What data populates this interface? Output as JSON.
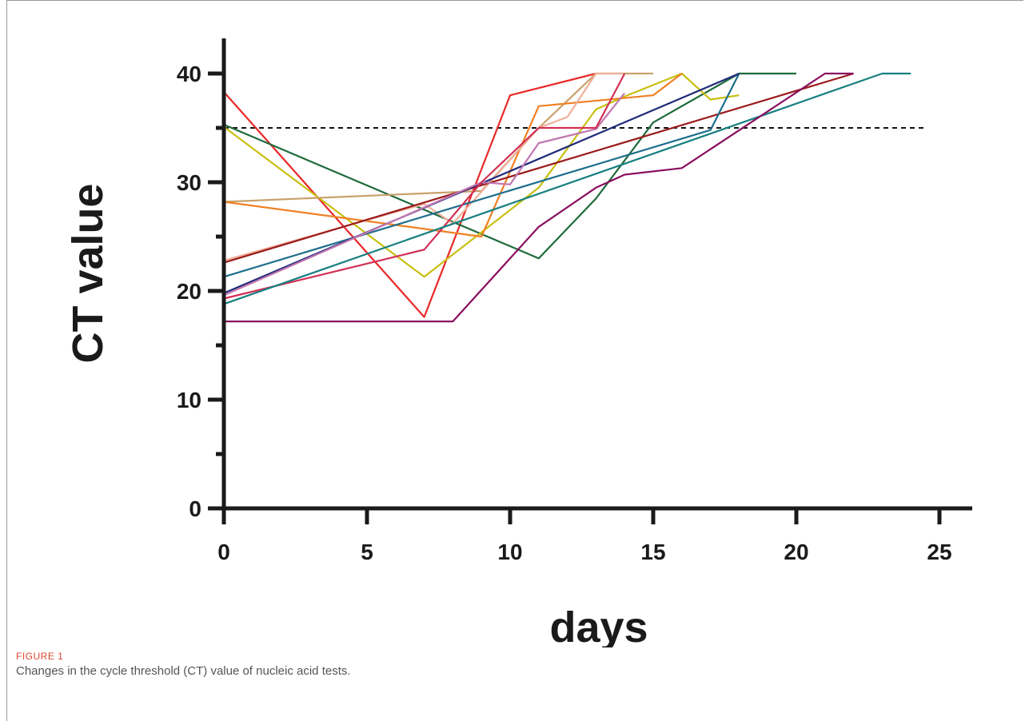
{
  "chart_data": {
    "type": "line",
    "xlabel": "days",
    "ylabel": "CT value",
    "xlim": [
      0,
      26
    ],
    "ylim": [
      0,
      40
    ],
    "x_ticks": [
      0,
      5,
      10,
      15,
      20,
      25
    ],
    "y_ticks": [
      0,
      10,
      20,
      30,
      40
    ],
    "threshold": {
      "y": 35,
      "x_range": [
        0,
        24.5
      ],
      "style": "dashed"
    },
    "grid": false,
    "series": [
      {
        "color": "#e8292a",
        "points": [
          [
            0,
            38.3
          ],
          [
            7,
            17.6
          ],
          [
            10,
            38
          ],
          [
            13,
            40
          ]
        ]
      },
      {
        "color": "#1e6b3c",
        "points": [
          [
            0,
            35.3
          ],
          [
            11,
            23
          ],
          [
            13,
            28.5
          ],
          [
            15,
            35.5
          ],
          [
            18,
            40
          ],
          [
            20,
            40
          ]
        ]
      },
      {
        "color": "#c8bf12",
        "points": [
          [
            0,
            35.1
          ],
          [
            7,
            21.3
          ],
          [
            11,
            29.5
          ],
          [
            13,
            36.7
          ],
          [
            14,
            37.9
          ],
          [
            16,
            40
          ],
          [
            17,
            37.6
          ],
          [
            18,
            38
          ]
        ]
      },
      {
        "color": "#c9a06a",
        "points": [
          [
            0,
            28.2
          ],
          [
            9,
            29.2
          ],
          [
            11,
            35
          ],
          [
            13,
            40
          ],
          [
            15,
            40
          ]
        ]
      },
      {
        "color": "#f08024",
        "points": [
          [
            0,
            28.2
          ],
          [
            9,
            25
          ],
          [
            11,
            37
          ],
          [
            15,
            38
          ],
          [
            16,
            40
          ]
        ]
      },
      {
        "color": "#f0b09a",
        "points": [
          [
            0,
            22.8
          ],
          [
            7,
            28
          ],
          [
            8,
            26.2
          ],
          [
            11,
            35
          ],
          [
            12,
            36
          ],
          [
            13,
            40
          ],
          [
            14,
            40
          ]
        ]
      },
      {
        "color": "#9b1b1b",
        "points": [
          [
            0,
            22.6
          ],
          [
            22,
            40
          ]
        ]
      },
      {
        "color": "#1d6e8c",
        "points": [
          [
            0,
            21.3
          ],
          [
            17,
            34.8
          ],
          [
            18,
            40
          ]
        ]
      },
      {
        "color": "#1f2a7a",
        "points": [
          [
            0,
            19.8
          ],
          [
            18,
            40
          ]
        ]
      },
      {
        "color": "#c276b0",
        "points": [
          [
            0,
            19.6
          ],
          [
            9,
            30
          ],
          [
            10,
            29.8
          ],
          [
            11,
            33.6
          ],
          [
            13,
            34.9
          ],
          [
            14,
            38.2
          ]
        ]
      },
      {
        "color": "#d22f55",
        "points": [
          [
            0,
            19.3
          ],
          [
            7,
            23.8
          ],
          [
            9,
            30
          ],
          [
            11,
            35
          ],
          [
            13,
            35
          ],
          [
            14,
            40
          ]
        ]
      },
      {
        "color": "#177f80",
        "points": [
          [
            0,
            18.8
          ],
          [
            23,
            40
          ],
          [
            24,
            40
          ]
        ]
      },
      {
        "color": "#8a1060",
        "points": [
          [
            0,
            17.2
          ],
          [
            8,
            17.2
          ],
          [
            11,
            25.9
          ],
          [
            13,
            29.5
          ],
          [
            14,
            30.7
          ],
          [
            16,
            31.3
          ],
          [
            21,
            40
          ],
          [
            22,
            40
          ]
        ]
      }
    ]
  },
  "figure": {
    "label": "FIGURE 1",
    "caption": "Changes in the cycle threshold (CT) value of nucleic acid tests."
  }
}
